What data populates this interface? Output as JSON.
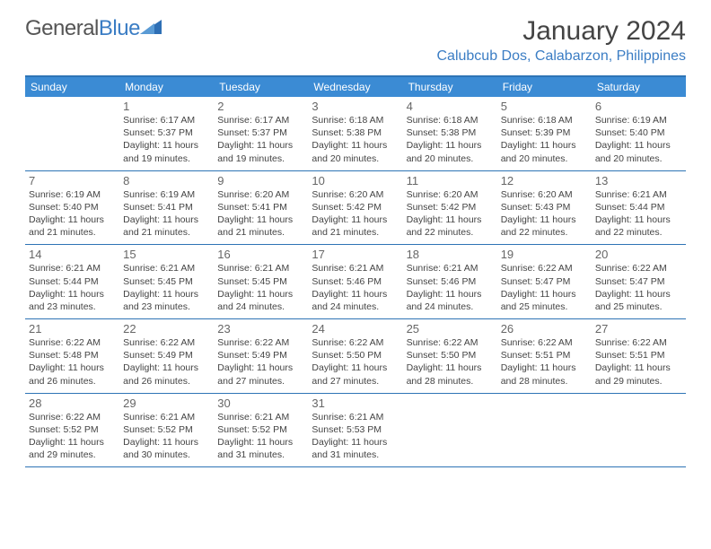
{
  "logo": {
    "text1": "General",
    "text2": "Blue"
  },
  "title": "January 2024",
  "location": "Calubcub Dos, Calabarzon, Philippines",
  "weekdays": [
    "Sunday",
    "Monday",
    "Tuesday",
    "Wednesday",
    "Thursday",
    "Friday",
    "Saturday"
  ],
  "colors": {
    "header_bg": "#3b8bd4",
    "border": "#2e74b5",
    "location": "#3b7dc4"
  },
  "weeks": [
    [
      null,
      {
        "n": "1",
        "sr": "6:17 AM",
        "ss": "5:37 PM",
        "dl": "11 hours and 19 minutes."
      },
      {
        "n": "2",
        "sr": "6:17 AM",
        "ss": "5:37 PM",
        "dl": "11 hours and 19 minutes."
      },
      {
        "n": "3",
        "sr": "6:18 AM",
        "ss": "5:38 PM",
        "dl": "11 hours and 20 minutes."
      },
      {
        "n": "4",
        "sr": "6:18 AM",
        "ss": "5:38 PM",
        "dl": "11 hours and 20 minutes."
      },
      {
        "n": "5",
        "sr": "6:18 AM",
        "ss": "5:39 PM",
        "dl": "11 hours and 20 minutes."
      },
      {
        "n": "6",
        "sr": "6:19 AM",
        "ss": "5:40 PM",
        "dl": "11 hours and 20 minutes."
      }
    ],
    [
      {
        "n": "7",
        "sr": "6:19 AM",
        "ss": "5:40 PM",
        "dl": "11 hours and 21 minutes."
      },
      {
        "n": "8",
        "sr": "6:19 AM",
        "ss": "5:41 PM",
        "dl": "11 hours and 21 minutes."
      },
      {
        "n": "9",
        "sr": "6:20 AM",
        "ss": "5:41 PM",
        "dl": "11 hours and 21 minutes."
      },
      {
        "n": "10",
        "sr": "6:20 AM",
        "ss": "5:42 PM",
        "dl": "11 hours and 21 minutes."
      },
      {
        "n": "11",
        "sr": "6:20 AM",
        "ss": "5:42 PM",
        "dl": "11 hours and 22 minutes."
      },
      {
        "n": "12",
        "sr": "6:20 AM",
        "ss": "5:43 PM",
        "dl": "11 hours and 22 minutes."
      },
      {
        "n": "13",
        "sr": "6:21 AM",
        "ss": "5:44 PM",
        "dl": "11 hours and 22 minutes."
      }
    ],
    [
      {
        "n": "14",
        "sr": "6:21 AM",
        "ss": "5:44 PM",
        "dl": "11 hours and 23 minutes."
      },
      {
        "n": "15",
        "sr": "6:21 AM",
        "ss": "5:45 PM",
        "dl": "11 hours and 23 minutes."
      },
      {
        "n": "16",
        "sr": "6:21 AM",
        "ss": "5:45 PM",
        "dl": "11 hours and 24 minutes."
      },
      {
        "n": "17",
        "sr": "6:21 AM",
        "ss": "5:46 PM",
        "dl": "11 hours and 24 minutes."
      },
      {
        "n": "18",
        "sr": "6:21 AM",
        "ss": "5:46 PM",
        "dl": "11 hours and 24 minutes."
      },
      {
        "n": "19",
        "sr": "6:22 AM",
        "ss": "5:47 PM",
        "dl": "11 hours and 25 minutes."
      },
      {
        "n": "20",
        "sr": "6:22 AM",
        "ss": "5:47 PM",
        "dl": "11 hours and 25 minutes."
      }
    ],
    [
      {
        "n": "21",
        "sr": "6:22 AM",
        "ss": "5:48 PM",
        "dl": "11 hours and 26 minutes."
      },
      {
        "n": "22",
        "sr": "6:22 AM",
        "ss": "5:49 PM",
        "dl": "11 hours and 26 minutes."
      },
      {
        "n": "23",
        "sr": "6:22 AM",
        "ss": "5:49 PM",
        "dl": "11 hours and 27 minutes."
      },
      {
        "n": "24",
        "sr": "6:22 AM",
        "ss": "5:50 PM",
        "dl": "11 hours and 27 minutes."
      },
      {
        "n": "25",
        "sr": "6:22 AM",
        "ss": "5:50 PM",
        "dl": "11 hours and 28 minutes."
      },
      {
        "n": "26",
        "sr": "6:22 AM",
        "ss": "5:51 PM",
        "dl": "11 hours and 28 minutes."
      },
      {
        "n": "27",
        "sr": "6:22 AM",
        "ss": "5:51 PM",
        "dl": "11 hours and 29 minutes."
      }
    ],
    [
      {
        "n": "28",
        "sr": "6:22 AM",
        "ss": "5:52 PM",
        "dl": "11 hours and 29 minutes."
      },
      {
        "n": "29",
        "sr": "6:21 AM",
        "ss": "5:52 PM",
        "dl": "11 hours and 30 minutes."
      },
      {
        "n": "30",
        "sr": "6:21 AM",
        "ss": "5:52 PM",
        "dl": "11 hours and 31 minutes."
      },
      {
        "n": "31",
        "sr": "6:21 AM",
        "ss": "5:53 PM",
        "dl": "11 hours and 31 minutes."
      },
      null,
      null,
      null
    ]
  ],
  "labels": {
    "sunrise": "Sunrise: ",
    "sunset": "Sunset: ",
    "daylight": "Daylight: "
  }
}
